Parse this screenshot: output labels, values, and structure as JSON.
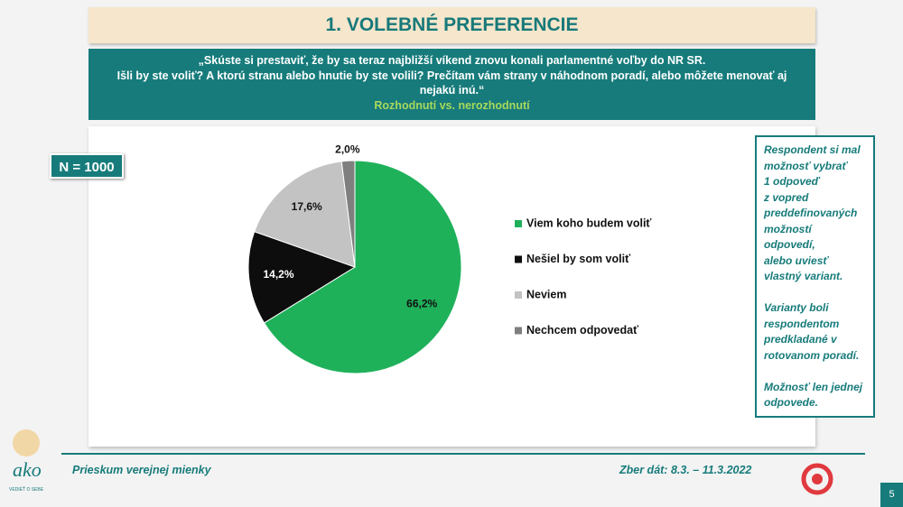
{
  "slide": {
    "title": "1. VOLEBNÉ PREFERENCIE",
    "question_lines": [
      "„Skúste si prestaviť, že by sa teraz najbližší víkend znovu konali parlamentné voľby do NR SR.",
      "Išli by ste voliť? A ktorú stranu alebo hnutie by ste volili? Prečítam vám strany v náhodnom poradí, alebo môžete menovať aj",
      "nejakú inú.“"
    ],
    "subtitle": "Rozhodnutí vs. nerozhodnutí",
    "sample": "N = 1000",
    "note": [
      [
        "Respondent si mal",
        "možnosť vybrať",
        "1 odpoveď",
        "z vopred",
        "preddefinovaných",
        "možností",
        "odpovedí,",
        "alebo uviesť",
        "vlastný variant."
      ],
      [
        "Varianty boli",
        "respondentom",
        "predkladané v",
        "rotovanom poradí."
      ],
      [
        "Možnosť len jednej",
        "odpovede."
      ]
    ],
    "footer_left": "Prieskum verejnej mienky",
    "footer_right": "Zber dát: 8.3. – 11.3.2022",
    "logo": "ako",
    "logo_tagline": "VEDIEŤ O SEBE",
    "page": "5"
  },
  "chart_data": {
    "type": "pie",
    "categories": [
      "Viem koho budem voliť",
      "Nešiel by som voliť",
      "Neviem",
      "Nechcem odpovedať"
    ],
    "values": [
      66.2,
      14.2,
      17.6,
      2.0
    ],
    "value_labels": [
      "66,2%",
      "14,2%",
      "17,6%",
      "2,0%"
    ],
    "colors": [
      "#1fb15a",
      "#0d0d0d",
      "#c3c3c3",
      "#7f7f7f"
    ]
  }
}
